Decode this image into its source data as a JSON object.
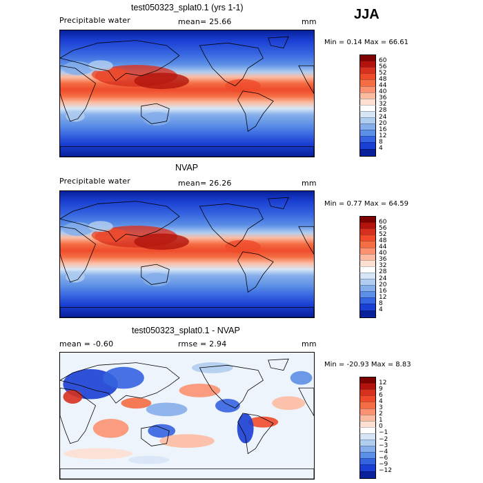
{
  "season": "JJA",
  "panels": [
    {
      "title": "test050323_splat0.1 (yrs 1-1)",
      "left_label": "Precipitable water",
      "center_label": "mean=  25.66",
      "units": "mm",
      "minmax": "Min =   0.14 Max =  66.61",
      "colorbar": {
        "labels": [
          "60",
          "56",
          "52",
          "48",
          "44",
          "40",
          "36",
          "32",
          "28",
          "24",
          "20",
          "16",
          "12",
          "8",
          "4"
        ],
        "colors": [
          "#7f0000",
          "#b2140d",
          "#d7301f",
          "#ef4b2b",
          "#f46d43",
          "#fc9272",
          "#fcbba1",
          "#fde0d2",
          "#ffffff",
          "#d6e6f7",
          "#b0cdf0",
          "#85aeea",
          "#5c8fe6",
          "#3564e0",
          "#1a3fd3",
          "#08219b"
        ]
      },
      "kind": "full"
    },
    {
      "title": "NVAP",
      "left_label": "Precipitable water",
      "center_label": "mean=  26.26",
      "units": "mm",
      "minmax": "Min =   0.77 Max =  64.59",
      "colorbar": {
        "labels": [
          "60",
          "56",
          "52",
          "48",
          "44",
          "40",
          "36",
          "32",
          "28",
          "24",
          "20",
          "16",
          "12",
          "8",
          "4"
        ],
        "colors": [
          "#7f0000",
          "#b2140d",
          "#d7301f",
          "#ef4b2b",
          "#f46d43",
          "#fc9272",
          "#fcbba1",
          "#fde0d2",
          "#ffffff",
          "#d6e6f7",
          "#b0cdf0",
          "#85aeea",
          "#5c8fe6",
          "#3564e0",
          "#1a3fd3",
          "#08219b"
        ]
      },
      "kind": "full"
    },
    {
      "title": "test050323_splat0.1 - NVAP",
      "left_label": "mean =  -0.60",
      "center_label": "rmse =   2.94",
      "units": "mm",
      "minmax": "Min = -20.93 Max =   8.83",
      "colorbar": {
        "labels": [
          "12",
          "9",
          "6",
          "4",
          "3",
          "2",
          "1",
          "0",
          "−1",
          "−2",
          "−3",
          "−4",
          "−6",
          "−9",
          "−12"
        ],
        "colors": [
          "#7f0000",
          "#b2140d",
          "#d7301f",
          "#ef4b2b",
          "#f46d43",
          "#fc9272",
          "#fcbba1",
          "#fde0d2",
          "#ffffff",
          "#d6e6f7",
          "#b0cdf0",
          "#85aeea",
          "#5c8fe6",
          "#3564e0",
          "#1a3fd3",
          "#08219b"
        ]
      },
      "kind": "diff"
    }
  ]
}
